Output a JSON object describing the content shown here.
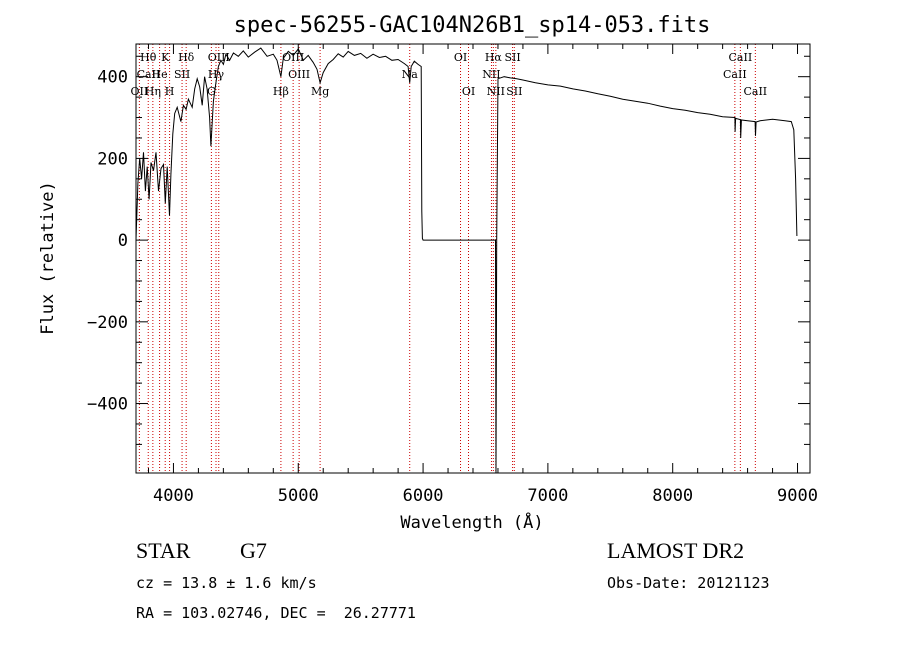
{
  "chart_data": {
    "type": "line",
    "title": "spec-56255-GAC104N26B1_sp14-053.fits",
    "xlabel": "Wavelength (Å)",
    "ylabel": "Flux (relative)",
    "xlim": [
      3700,
      9100
    ],
    "ylim": [
      -570,
      480
    ],
    "xticks": [
      4000,
      5000,
      6000,
      7000,
      8000,
      9000
    ],
    "yticks": [
      -400,
      -200,
      0,
      200,
      400
    ],
    "xtick_labels": [
      "4000",
      "5000",
      "6000",
      "7000",
      "8000",
      "9000"
    ],
    "ytick_labels": [
      "−400",
      "−200",
      "0",
      "200",
      "400"
    ],
    "series": [
      {
        "name": "spectrum",
        "points": [
          [
            3700,
            0
          ],
          [
            3715,
            140
          ],
          [
            3730,
            200
          ],
          [
            3745,
            150
          ],
          [
            3760,
            215
          ],
          [
            3775,
            120
          ],
          [
            3790,
            180
          ],
          [
            3805,
            100
          ],
          [
            3820,
            190
          ],
          [
            3840,
            170
          ],
          [
            3860,
            215
          ],
          [
            3880,
            120
          ],
          [
            3900,
            175
          ],
          [
            3920,
            185
          ],
          [
            3935,
            90
          ],
          [
            3950,
            180
          ],
          [
            3968,
            60
          ],
          [
            3980,
            160
          ],
          [
            3995,
            260
          ],
          [
            4010,
            310
          ],
          [
            4030,
            325
          ],
          [
            4060,
            290
          ],
          [
            4080,
            330
          ],
          [
            4101,
            320
          ],
          [
            4120,
            345
          ],
          [
            4150,
            325
          ],
          [
            4170,
            370
          ],
          [
            4190,
            395
          ],
          [
            4210,
            375
          ],
          [
            4230,
            330
          ],
          [
            4250,
            400
          ],
          [
            4270,
            370
          ],
          [
            4290,
            300
          ],
          [
            4300,
            230
          ],
          [
            4320,
            340
          ],
          [
            4340,
            385
          ],
          [
            4360,
            425
          ],
          [
            4380,
            440
          ],
          [
            4400,
            430
          ],
          [
            4420,
            455
          ],
          [
            4450,
            440
          ],
          [
            4480,
            458
          ],
          [
            4520,
            450
          ],
          [
            4560,
            463
          ],
          [
            4600,
            448
          ],
          [
            4650,
            460
          ],
          [
            4700,
            470
          ],
          [
            4750,
            450
          ],
          [
            4800,
            455
          ],
          [
            4830,
            440
          ],
          [
            4861,
            400
          ],
          [
            4880,
            445
          ],
          [
            4920,
            462
          ],
          [
            4960,
            452
          ],
          [
            5000,
            468
          ],
          [
            5040,
            440
          ],
          [
            5080,
            452
          ],
          [
            5120,
            435
          ],
          [
            5150,
            418
          ],
          [
            5175,
            385
          ],
          [
            5200,
            410
          ],
          [
            5240,
            432
          ],
          [
            5280,
            442
          ],
          [
            5320,
            456
          ],
          [
            5360,
            448
          ],
          [
            5400,
            462
          ],
          [
            5450,
            452
          ],
          [
            5500,
            457
          ],
          [
            5550,
            445
          ],
          [
            5600,
            455
          ],
          [
            5650,
            447
          ],
          [
            5700,
            450
          ],
          [
            5750,
            440
          ],
          [
            5800,
            442
          ],
          [
            5850,
            432
          ],
          [
            5880,
            425
          ],
          [
            5893,
            385
          ],
          [
            5905,
            425
          ],
          [
            5930,
            438
          ],
          [
            5960,
            430
          ],
          [
            5985,
            425
          ],
          [
            5990,
            70
          ],
          [
            5995,
            4
          ],
          [
            6000,
            0
          ],
          [
            6300,
            0
          ],
          [
            6560,
            0
          ],
          [
            6580,
            0
          ],
          [
            6584,
            -600
          ],
          [
            6590,
            0
          ],
          [
            6600,
            395
          ],
          [
            6650,
            400
          ],
          [
            6700,
            397
          ],
          [
            6750,
            395
          ],
          [
            6800,
            392
          ],
          [
            6900,
            385
          ],
          [
            7000,
            380
          ],
          [
            7100,
            377
          ],
          [
            7200,
            370
          ],
          [
            7300,
            365
          ],
          [
            7400,
            358
          ],
          [
            7500,
            352
          ],
          [
            7600,
            345
          ],
          [
            7700,
            340
          ],
          [
            7800,
            335
          ],
          [
            7900,
            328
          ],
          [
            8000,
            322
          ],
          [
            8100,
            318
          ],
          [
            8200,
            312
          ],
          [
            8300,
            308
          ],
          [
            8400,
            302
          ],
          [
            8498,
            300
          ],
          [
            8500,
            265
          ],
          [
            8504,
            298
          ],
          [
            8542,
            295
          ],
          [
            8545,
            250
          ],
          [
            8550,
            294
          ],
          [
            8600,
            292
          ],
          [
            8660,
            290
          ],
          [
            8663,
            255
          ],
          [
            8668,
            289
          ],
          [
            8700,
            292
          ],
          [
            8800,
            296
          ],
          [
            8900,
            292
          ],
          [
            8950,
            290
          ],
          [
            8970,
            270
          ],
          [
            8985,
            150
          ],
          [
            8995,
            10
          ]
        ]
      }
    ],
    "spectral_lines": [
      {
        "label": "Hθ",
        "x": 3798,
        "row": 1
      },
      {
        "label": "CaII",
        "x": 3800,
        "row": 2
      },
      {
        "label": "OII",
        "x": 3727,
        "row": 3
      },
      {
        "label": "Hη",
        "x": 3835,
        "row": 3
      },
      {
        "label": "K",
        "x": 3934,
        "row": 1
      },
      {
        "label": "He",
        "x": 3889,
        "row": 2
      },
      {
        "label": "H",
        "x": 3969,
        "row": 3
      },
      {
        "label": "Hδ",
        "x": 4102,
        "row": 1
      },
      {
        "label": "SII",
        "x": 4069,
        "row": 2
      },
      {
        "label": "OIII",
        "x": 4363,
        "row": 1
      },
      {
        "label": "Hγ",
        "x": 4341,
        "row": 2
      },
      {
        "label": "G",
        "x": 4304,
        "row": 3
      },
      {
        "label": "OIII",
        "x": 4959,
        "row": 1
      },
      {
        "label": "OIII",
        "x": 5007,
        "row": 2
      },
      {
        "label": "Hβ",
        "x": 4861,
        "row": 3
      },
      {
        "label": "Mg",
        "x": 5175,
        "row": 3
      },
      {
        "label": "Na",
        "x": 5893,
        "row": 2
      },
      {
        "label": "OI",
        "x": 6300,
        "row": 1
      },
      {
        "label": "OI",
        "x": 6364,
        "row": 3
      },
      {
        "label": "Hα",
        "x": 6563,
        "row": 1
      },
      {
        "label": "SII",
        "x": 6717,
        "row": 1
      },
      {
        "label": "NII",
        "x": 6548,
        "row": 2
      },
      {
        "label": "NII",
        "x": 6583,
        "row": 3
      },
      {
        "label": "SII",
        "x": 6731,
        "row": 3
      },
      {
        "label": "CaII",
        "x": 8498,
        "row": 2
      },
      {
        "label": "CaII",
        "x": 8542,
        "row": 1
      },
      {
        "label": "CaII",
        "x": 8662,
        "row": 3
      }
    ],
    "vlines": [
      3727,
      3798,
      3835,
      3889,
      3934,
      3969,
      4069,
      4102,
      4304,
      4341,
      4363,
      4861,
      4959,
      5007,
      5175,
      5893,
      6300,
      6364,
      6548,
      6563,
      6583,
      6717,
      6731,
      8498,
      8542,
      8662
    ],
    "vline_color": "#cc0000",
    "line_color": "#000000"
  },
  "info": {
    "object_class": "STAR",
    "subclass": "G7",
    "survey": "LAMOST DR2",
    "redshift": "cz = 13.8 ± 1.6 km/s",
    "obs_date": "Obs-Date: 20121123",
    "coords": "RA = 103.02746, DEC =  26.27771"
  }
}
